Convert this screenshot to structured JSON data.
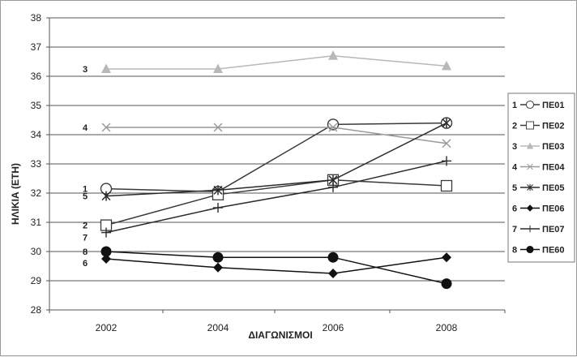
{
  "chart_data": {
    "type": "line",
    "title": "",
    "xlabel": "ΔΙΑΓΩΝΙΣΜΟΙ",
    "ylabel": "ΗΛΙΚΙΑ (ΕΤΗ)",
    "x": [
      "2002",
      "2004",
      "2006",
      "2008"
    ],
    "ylim": [
      28,
      38
    ],
    "yticks": [
      "28",
      "29",
      "30",
      "31",
      "32",
      "33",
      "34",
      "35",
      "36",
      "37",
      "38"
    ],
    "grid": "horizontal",
    "legend_position": "right",
    "series": [
      {
        "id": "1",
        "name": "ΠΕ01",
        "values": [
          32.15,
          32.05,
          34.35,
          34.4
        ],
        "marker": "open-circle",
        "color": "#3a3a3a"
      },
      {
        "id": "2",
        "name": "ΠΕ02",
        "values": [
          30.9,
          31.95,
          32.45,
          32.25
        ],
        "marker": "open-square",
        "color": "#3a3a3a"
      },
      {
        "id": "3",
        "name": "ΠΕ03",
        "values": [
          36.25,
          36.25,
          36.7,
          36.35
        ],
        "marker": "triangle",
        "color": "#b8b8b8"
      },
      {
        "id": "4",
        "name": "ΠΕ04",
        "values": [
          34.25,
          34.25,
          34.25,
          33.7
        ],
        "marker": "x",
        "color": "#999999"
      },
      {
        "id": "5",
        "name": "ΠΕ05",
        "values": [
          31.9,
          32.1,
          32.45,
          34.4
        ],
        "marker": "asterisk",
        "color": "#2a2a2a"
      },
      {
        "id": "6",
        "name": "ΠΕ06",
        "values": [
          29.75,
          29.45,
          29.25,
          29.8
        ],
        "marker": "diamond",
        "color": "#111111"
      },
      {
        "id": "7",
        "name": "ΠΕ07",
        "values": [
          30.65,
          31.5,
          32.2,
          33.1
        ],
        "marker": "plus",
        "color": "#2a2a2a"
      },
      {
        "id": "8",
        "name": "ΠΕ60",
        "values": [
          30.0,
          29.8,
          29.8,
          28.9
        ],
        "marker": "filled-circle",
        "color": "#111111"
      }
    ],
    "line_labels": [
      {
        "text": "3",
        "series": "3"
      },
      {
        "text": "4",
        "series": "4"
      },
      {
        "text": "1",
        "series": "1"
      },
      {
        "text": "5",
        "series": "5"
      },
      {
        "text": "2",
        "series": "2"
      },
      {
        "text": "7",
        "series": "7"
      },
      {
        "text": "8",
        "series": "8"
      },
      {
        "text": "6",
        "series": "6"
      }
    ]
  }
}
